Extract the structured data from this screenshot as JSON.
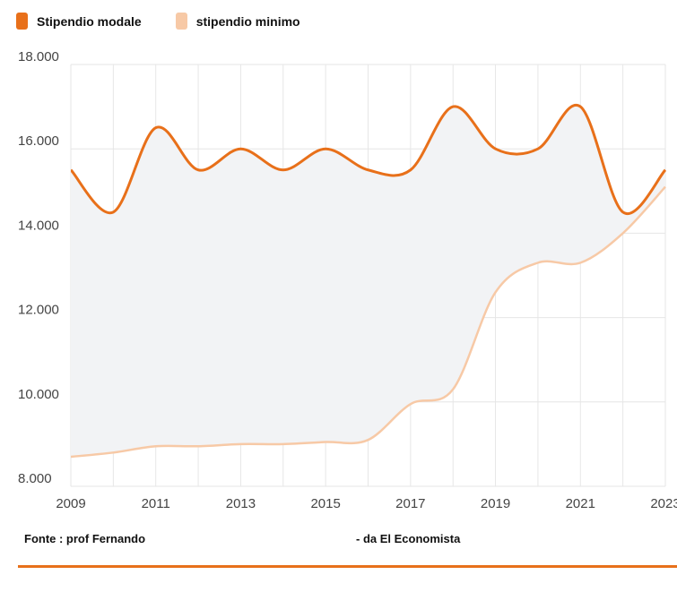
{
  "legend": [
    {
      "name": "Stipendio modale",
      "color": "#E8701A"
    },
    {
      "name": "stipendio minimo",
      "color": "#F7C9A6"
    }
  ],
  "colors": {
    "area": "#F2F3F5",
    "grid": "#E6E6E6",
    "accent": "#E8701A"
  },
  "chart_data": {
    "type": "line",
    "title": "",
    "xlabel": "",
    "ylabel": "",
    "xlim": [
      2009,
      2023
    ],
    "ylim": [
      8000,
      18000
    ],
    "x_ticks": [
      "2009",
      "2011",
      "2013",
      "2015",
      "2017",
      "2019",
      "2021",
      "2023"
    ],
    "y_ticks": [
      "8.000",
      "10.000",
      "12.000",
      "14.000",
      "16.000",
      "18.000"
    ],
    "x": [
      2009,
      2010,
      2011,
      2012,
      2013,
      2014,
      2015,
      2016,
      2017,
      2018,
      2019,
      2020,
      2021,
      2022,
      2023
    ],
    "series": [
      {
        "name": "Stipendio modale",
        "values": [
          15500,
          14500,
          16500,
          15500,
          16000,
          15500,
          16000,
          15500,
          15500,
          17000,
          16000,
          16000,
          17000,
          14500,
          15500
        ]
      },
      {
        "name": "stipendio minimo",
        "values": [
          8700,
          8800,
          8950,
          8950,
          9000,
          9000,
          9050,
          9100,
          9950,
          10300,
          12600,
          13300,
          13300,
          14000,
          15100
        ]
      }
    ]
  },
  "footer": {
    "source": "Fonte : prof Fernando",
    "credit": "- da El Economista"
  }
}
